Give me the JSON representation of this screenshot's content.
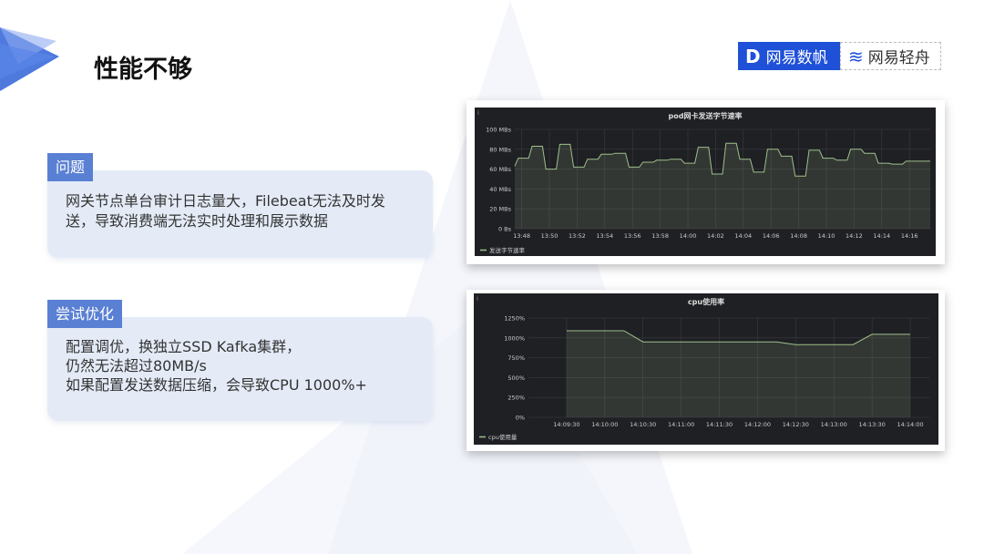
{
  "slide": {
    "title": "性能不够",
    "problem": {
      "tag": "问题",
      "lines": [
        "网关节点单台审计日志量大，Filebeat无法及时发",
        "送，导致消费端无法实时处理和展示数据"
      ]
    },
    "attempt": {
      "tag": "尝试优化",
      "lines": [
        "配置调优，换独立SSD  Kafka集群，",
        "仍然无法超过80MB/s",
        "如果配置发送数据压缩，会导致CPU  1000%+"
      ]
    },
    "logos": {
      "left": "网易数帆",
      "right": "网易轻舟"
    },
    "accent": "#5a80d4"
  },
  "chart_data": [
    {
      "type": "area",
      "title": "pod网卡发送字节速率",
      "legend": "发送字节速率",
      "legend_position": "bottom-left",
      "grid": true,
      "color": "#9fbf8a",
      "ylim": [
        0,
        100
      ],
      "yticks": [
        "0 Bs",
        "20 MBs",
        "40 MBs",
        "60 MBs",
        "80 MBs",
        "100 MBs"
      ],
      "xticks": [
        "13:48",
        "13:50",
        "13:52",
        "13:54",
        "13:56",
        "13:58",
        "14:00",
        "14:02",
        "14:04",
        "14:06",
        "14:08",
        "14:10",
        "14:12",
        "14:14",
        "14:16"
      ],
      "xlim": [
        "13:47:30",
        "14:17:30"
      ],
      "x": [
        "13:47:30",
        "13:47:45",
        "13:48:30",
        "13:48:45",
        "13:49:30",
        "13:49:45",
        "13:50:30",
        "13:50:45",
        "13:51:30",
        "13:51:45",
        "13:52:30",
        "13:52:45",
        "13:53:30",
        "13:53:45",
        "13:54:30",
        "13:54:45",
        "13:55:30",
        "13:55:45",
        "13:56:30",
        "13:56:45",
        "13:57:30",
        "13:57:45",
        "13:58:30",
        "13:58:45",
        "13:59:30",
        "13:59:45",
        "14:00:30",
        "14:00:45",
        "14:01:30",
        "14:01:45",
        "14:02:30",
        "14:02:45",
        "14:03:30",
        "14:03:45",
        "14:04:30",
        "14:04:45",
        "14:05:30",
        "14:05:45",
        "14:06:30",
        "14:06:45",
        "14:07:30",
        "14:07:45",
        "14:08:30",
        "14:08:45",
        "14:09:30",
        "14:09:45",
        "14:10:30",
        "14:10:45",
        "14:11:30",
        "14:11:45",
        "14:12:30",
        "14:12:45",
        "14:13:30",
        "14:13:45",
        "14:14:30",
        "14:14:45",
        "14:15:30",
        "14:15:45",
        "14:17:30"
      ],
      "values": [
        63,
        71,
        71,
        83,
        83,
        60,
        60,
        85,
        85,
        62,
        62,
        70,
        70,
        75,
        75,
        76,
        76,
        62,
        62,
        67,
        67,
        69,
        69,
        70,
        70,
        66,
        66,
        82,
        82,
        55,
        55,
        86,
        86,
        70,
        70,
        57,
        57,
        80,
        80,
        73,
        73,
        53,
        53,
        79,
        79,
        71,
        71,
        69,
        69,
        80,
        80,
        76,
        76,
        66,
        66,
        65,
        65,
        68,
        68
      ]
    },
    {
      "type": "area",
      "title": "cpu使用率",
      "legend": "cpu使用量",
      "legend_position": "bottom-left",
      "grid": true,
      "color": "#9fbf8a",
      "ylim": [
        0,
        1250
      ],
      "yticks": [
        "0%",
        "250%",
        "500%",
        "750%",
        "1000%",
        "1250%"
      ],
      "xticks": [
        "14:09:30",
        "14:10:00",
        "14:10:30",
        "14:11:00",
        "14:11:30",
        "14:12:00",
        "14:12:30",
        "14:13:00",
        "14:13:30",
        "14:14:00"
      ],
      "xlim": [
        "14:09:00",
        "14:14:15"
      ],
      "x": [
        "14:09:30",
        "14:10:15",
        "14:10:30",
        "14:12:15",
        "14:12:30",
        "14:13:15",
        "14:13:30",
        "14:14:00"
      ],
      "values": [
        1090,
        1090,
        950,
        950,
        915,
        915,
        1045,
        1045
      ]
    }
  ]
}
